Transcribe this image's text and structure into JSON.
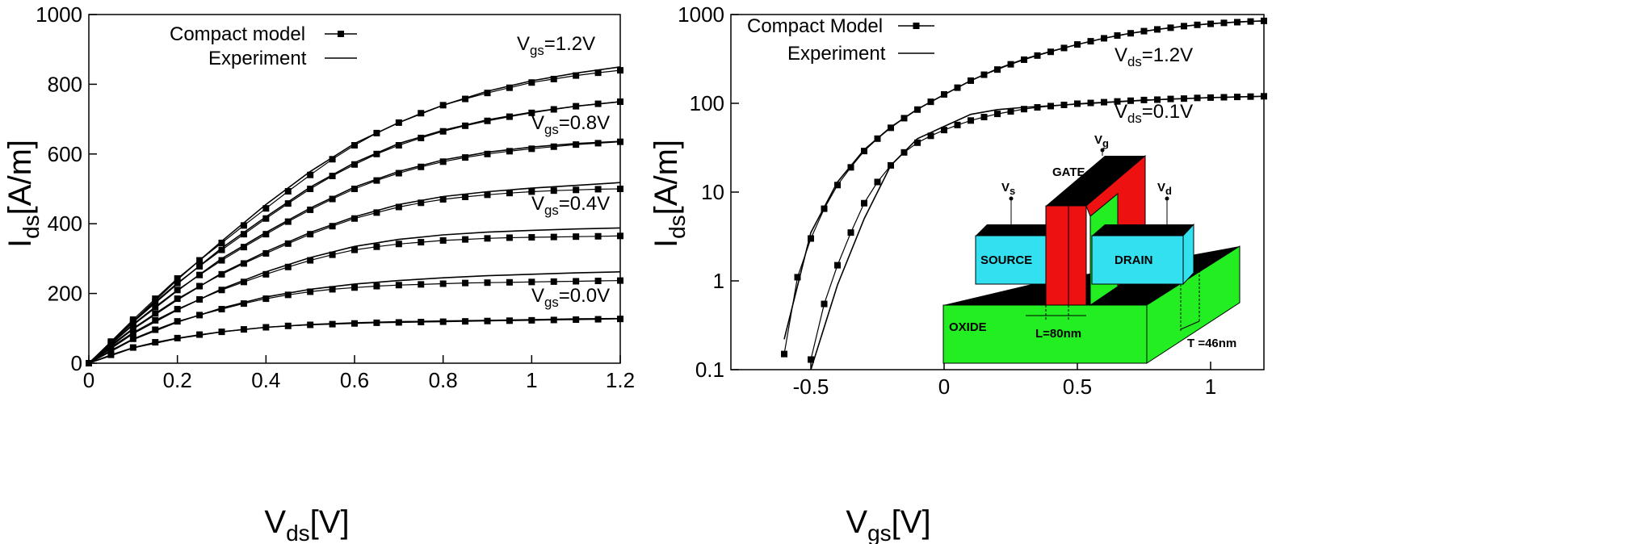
{
  "chart_data": [
    {
      "type": "line",
      "xlabel": {
        "main": "V",
        "sub": "ds",
        "rest": "[V]"
      },
      "ylabel": {
        "main": "I",
        "sub": "ds",
        "rest": "[A/m]"
      },
      "xlim": [
        0,
        1.2
      ],
      "ylim": [
        0,
        1000
      ],
      "xticks": [
        0,
        0.2,
        0.4,
        0.6,
        0.8,
        1,
        1.2
      ],
      "yticks": [
        0,
        200,
        400,
        600,
        800,
        1000
      ],
      "color": "#000000",
      "series": [
        {
          "name": "Compact model",
          "style": "markers",
          "x": [
            0,
            0.05,
            0.1,
            0.15,
            0.2,
            0.25,
            0.3,
            0.35,
            0.4,
            0.45,
            0.5,
            0.55,
            0.6,
            0.65,
            0.7,
            0.75,
            0.8,
            0.85,
            0.9,
            0.95,
            1,
            1.05,
            1.1,
            1.15,
            1.2
          ],
          "curves": [
            {
              "values": [
                0,
                62,
                125,
                185,
                243,
                295,
                345,
                395,
                444,
                493,
                540,
                585,
                625,
                660,
                690,
                717,
                740,
                758,
                775,
                790,
                805,
                815,
                825,
                833,
                840
              ]
            },
            {
              "values": [
                0,
                60,
                120,
                176,
                230,
                278,
                325,
                370,
                415,
                458,
                500,
                537,
                570,
                600,
                625,
                646,
                665,
                681,
                695,
                707,
                718,
                728,
                737,
                744,
                750
              ]
            },
            {
              "values": [
                0,
                57,
                112,
                162,
                210,
                253,
                295,
                333,
                370,
                406,
                440,
                471,
                500,
                524,
                545,
                563,
                578,
                590,
                600,
                608,
                615,
                621,
                627,
                631,
                635
              ]
            },
            {
              "values": [
                0,
                52,
                100,
                143,
                185,
                221,
                255,
                286,
                315,
                343,
                370,
                393,
                415,
                432,
                448,
                460,
                470,
                477,
                483,
                488,
                492,
                495,
                497,
                499,
                500
              ]
            },
            {
              "values": [
                0,
                46,
                88,
                123,
                155,
                183,
                210,
                233,
                255,
                276,
                295,
                311,
                325,
                334,
                342,
                347,
                352,
                355,
                358,
                360,
                361,
                362,
                363,
                364,
                365
              ]
            },
            {
              "values": [
                0,
                37,
                70,
                96,
                120,
                138,
                155,
                171,
                185,
                196,
                205,
                212,
                217,
                221,
                224,
                226,
                228,
                230,
                231,
                232,
                233,
                234,
                235,
                236,
                237
              ]
            },
            {
              "values": [
                0,
                24,
                45,
                60,
                72,
                82,
                90,
                97,
                103,
                107,
                110,
                112,
                114,
                116,
                117,
                118,
                119,
                120,
                121,
                122,
                123,
                124,
                125,
                126,
                127
              ]
            }
          ]
        },
        {
          "name": "Experiment",
          "style": "line",
          "x": [
            0,
            0.1,
            0.2,
            0.3,
            0.4,
            0.5,
            0.6,
            0.7,
            0.8,
            0.9,
            1,
            1.1,
            1.2
          ],
          "curves": [
            {
              "values": [
                0,
                120,
                240,
                350,
                455,
                550,
                630,
                690,
                740,
                780,
                810,
                832,
                850
              ]
            },
            {
              "values": [
                0,
                118,
                228,
                330,
                420,
                505,
                575,
                630,
                668,
                698,
                720,
                737,
                750
              ]
            },
            {
              "values": [
                0,
                110,
                208,
                300,
                375,
                445,
                505,
                550,
                583,
                605,
                620,
                630,
                636
              ]
            },
            {
              "values": [
                0,
                98,
                182,
                258,
                320,
                375,
                420,
                455,
                478,
                492,
                502,
                510,
                518
              ]
            },
            {
              "values": [
                0,
                85,
                153,
                213,
                262,
                303,
                335,
                355,
                368,
                376,
                381,
                385,
                388
              ]
            },
            {
              "values": [
                0,
                68,
                118,
                158,
                190,
                212,
                227,
                237,
                245,
                251,
                255,
                259,
                262
              ]
            },
            {
              "values": [
                0,
                44,
                71,
                90,
                103,
                111,
                116,
                119,
                121,
                123,
                125,
                127,
                128
              ]
            }
          ]
        }
      ],
      "annotations": [
        {
          "main": "V",
          "sub": "gs",
          "rest": "=1.2V"
        },
        {
          "main": "V",
          "sub": "gs",
          "rest": "=0.8V"
        },
        {
          "main": "V",
          "sub": "gs",
          "rest": "=0.4V"
        },
        {
          "main": "V",
          "sub": "gs",
          "rest": "=0.0V"
        }
      ]
    },
    {
      "type": "line",
      "ylog": true,
      "xlabel": {
        "main": "V",
        "sub": "gs",
        "rest": "[V]"
      },
      "ylabel": {
        "main": "I",
        "sub": "ds",
        "rest": "[A/m]"
      },
      "xlim": [
        -0.8,
        1.2
      ],
      "ylim": [
        0.1,
        1000
      ],
      "xticks": [
        -0.5,
        0,
        0.5,
        1
      ],
      "yticks": [
        0.1,
        1,
        10,
        100,
        1000
      ],
      "color": "#000000",
      "series": [
        {
          "name": "Compact Model",
          "style": "markers",
          "curves": [
            {
              "x": [
                -0.6,
                -0.55,
                -0.5,
                -0.45,
                -0.4,
                -0.35,
                -0.3,
                -0.25,
                -0.2,
                -0.15,
                -0.1,
                -0.05,
                0,
                0.05,
                0.1,
                0.15,
                0.2,
                0.25,
                0.3,
                0.35,
                0.4,
                0.45,
                0.5,
                0.55,
                0.6,
                0.65,
                0.7,
                0.75,
                0.8,
                0.85,
                0.9,
                0.95,
                1,
                1.05,
                1.1,
                1.15,
                1.2
              ],
              "values": [
                0.15,
                1.1,
                3,
                6.5,
                12,
                19,
                29,
                40,
                53,
                68,
                85,
                104,
                126,
                150,
                180,
                210,
                240,
                275,
                310,
                345,
                380,
                420,
                460,
                500,
                540,
                580,
                615,
                650,
                680,
                710,
                740,
                765,
                785,
                805,
                820,
                835,
                848
              ]
            },
            {
              "x": [
                -0.5,
                -0.45,
                -0.4,
                -0.35,
                -0.3,
                -0.25,
                -0.2,
                -0.15,
                -0.1,
                -0.05,
                0,
                0.05,
                0.1,
                0.15,
                0.2,
                0.25,
                0.3,
                0.35,
                0.4,
                0.45,
                0.5,
                0.55,
                0.6,
                0.65,
                0.7,
                0.75,
                0.8,
                0.85,
                0.9,
                0.95,
                1,
                1.05,
                1.1,
                1.15,
                1.2
              ],
              "values": [
                0.13,
                0.55,
                1.5,
                3.5,
                7.5,
                13,
                20,
                28,
                36,
                43,
                50,
                57,
                64,
                70,
                76,
                81,
                86,
                90,
                93,
                96,
                99,
                101,
                103,
                105,
                107,
                109,
                110,
                112,
                113,
                115,
                116,
                117,
                118,
                119,
                120
              ]
            }
          ]
        },
        {
          "name": "Experiment",
          "style": "line",
          "curves": [
            {
              "x": [
                -0.6,
                -0.5,
                -0.4,
                -0.3,
                -0.2,
                -0.1,
                0,
                0.1,
                0.2,
                0.3,
                0.4,
                0.5,
                0.6,
                0.7,
                0.8,
                0.9,
                1,
                1.1,
                1.2
              ],
              "values": [
                0.22,
                3.5,
                13,
                30,
                54,
                86,
                125,
                180,
                245,
                315,
                385,
                460,
                540,
                615,
                680,
                740,
                790,
                825,
                850
              ]
            },
            {
              "x": [
                -0.5,
                -0.4,
                -0.3,
                -0.2,
                -0.1,
                0,
                0.1,
                0.2,
                0.3,
                0.4,
                0.5,
                0.6,
                0.7,
                0.8,
                0.9,
                1,
                1.1,
                1.2
              ],
              "values": [
                0.1,
                0.9,
                5,
                20,
                40,
                55,
                75,
                85,
                90,
                94,
                98,
                102,
                106,
                110,
                113,
                116,
                118,
                120
              ]
            }
          ]
        }
      ],
      "annotations": [
        {
          "main": "V",
          "sub": "ds",
          "rest": "=1.2V"
        },
        {
          "main": "V",
          "sub": "ds",
          "rest": "=0.1V"
        }
      ],
      "inset": {
        "source": "SOURCE",
        "drain": "DRAIN",
        "gate": "GATE",
        "oxide": "OXIDE",
        "vs": {
          "main": "V",
          "sub": "s"
        },
        "vg": {
          "main": "V",
          "sub": "g"
        },
        "vd": {
          "main": "V",
          "sub": "d"
        },
        "length": "L=80nm",
        "thickness": "T =46nm"
      }
    }
  ]
}
